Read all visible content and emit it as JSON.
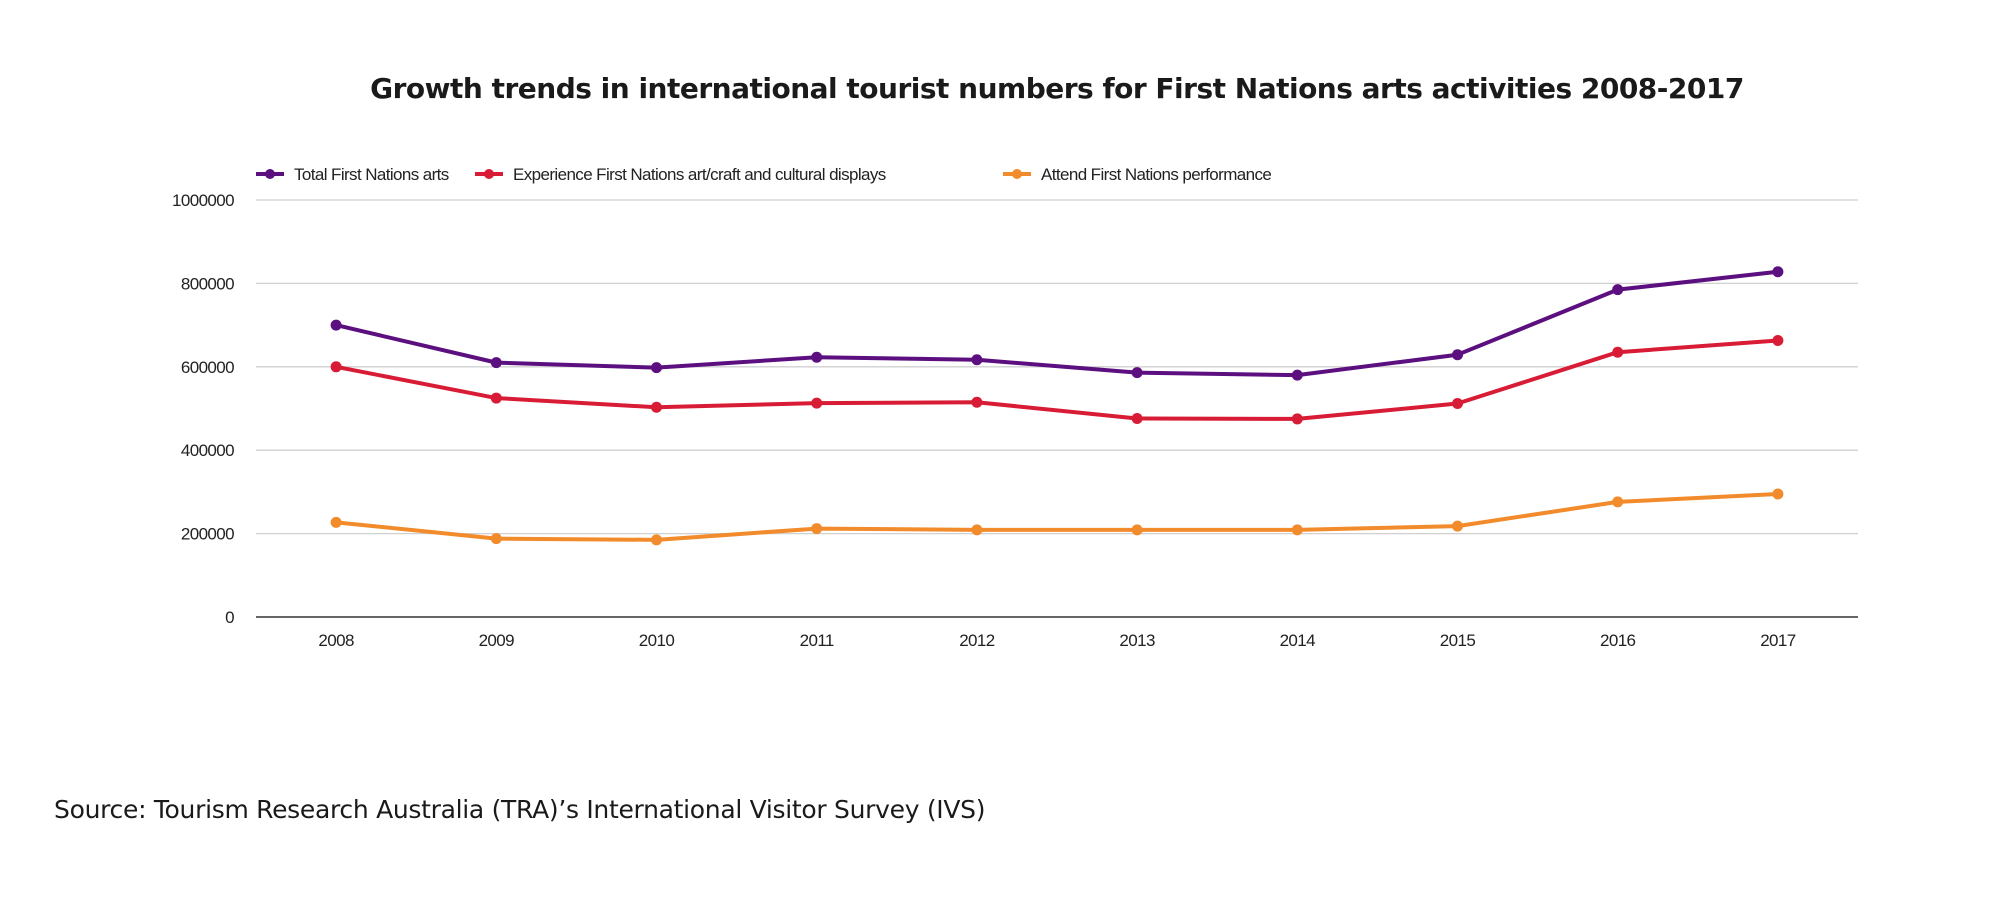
{
  "chart_data": {
    "type": "line",
    "title": "Growth trends in international tourist numbers for First Nations arts activities 2008-2017",
    "xlabel": "",
    "ylabel": "",
    "categories": [
      "2008",
      "2009",
      "2010",
      "2011",
      "2012",
      "2013",
      "2014",
      "2015",
      "2016",
      "2017"
    ],
    "ylim": [
      0,
      1000000
    ],
    "yticks": [
      "0",
      "200000",
      "400000",
      "600000",
      "800000",
      "1000000"
    ],
    "grid": true,
    "legend_position": "top-left",
    "series": [
      {
        "name": "Total First Nations arts",
        "color": "#5c0f7f",
        "values": [
          700000,
          610000,
          598000,
          623000,
          617000,
          586000,
          580000,
          629000,
          785000,
          828000
        ]
      },
      {
        "name": "Experience First Nations art/craft and cultural displays",
        "color": "#d91c36",
        "values": [
          600000,
          525000,
          503000,
          513000,
          515000,
          476000,
          475000,
          512000,
          635000,
          663000
        ]
      },
      {
        "name": "Attend First Nations performance",
        "color": "#f28b2b",
        "values": [
          227000,
          188000,
          185000,
          212000,
          209000,
          209000,
          209000,
          218000,
          276000,
          295000
        ]
      }
    ]
  },
  "source": "Source: Tourism Research Australia (TRA)’s International Visitor Survey (IVS)"
}
